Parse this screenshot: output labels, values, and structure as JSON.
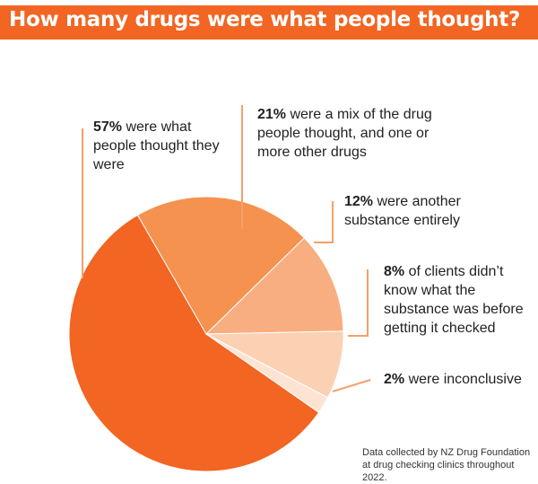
{
  "title": "How many drugs were what people thought?",
  "colors": {
    "title_bg": "#f26522",
    "title_text": "#ffffff",
    "leader": "#f4a06a"
  },
  "chart_data": {
    "type": "pie",
    "slices": [
      {
        "label": "were what people thought they were",
        "value": 57,
        "color": "#f26522"
      },
      {
        "label": "were a mix of the drug people thought, and one or more other drugs",
        "value": 21,
        "color": "#f5924f"
      },
      {
        "label": "were another substance entirely",
        "value": 12,
        "color": "#f8ae80"
      },
      {
        "label": "of clients didn’t know what the substance was before getting it checked",
        "value": 8,
        "color": "#fcd0b2"
      },
      {
        "label": "were inconclusive",
        "value": 2,
        "color": "#fde4d2"
      }
    ]
  },
  "annotations": {
    "a57": {
      "pct": "57%",
      "text": " were what people thought they were"
    },
    "a21": {
      "pct": "21%",
      "text": " were a mix of the drug people thought, and one or more other drugs"
    },
    "a12": {
      "pct": "12%",
      "text": " were another substance entirely"
    },
    "a8": {
      "pct": "8%",
      "text": " of clients didn’t know what the substance was before getting it checked"
    },
    "a2": {
      "pct": "2%",
      "text": " were inconclusive"
    }
  },
  "source_note": "Data collected by NZ Drug Foundation at drug checking clinics throughout 2022."
}
